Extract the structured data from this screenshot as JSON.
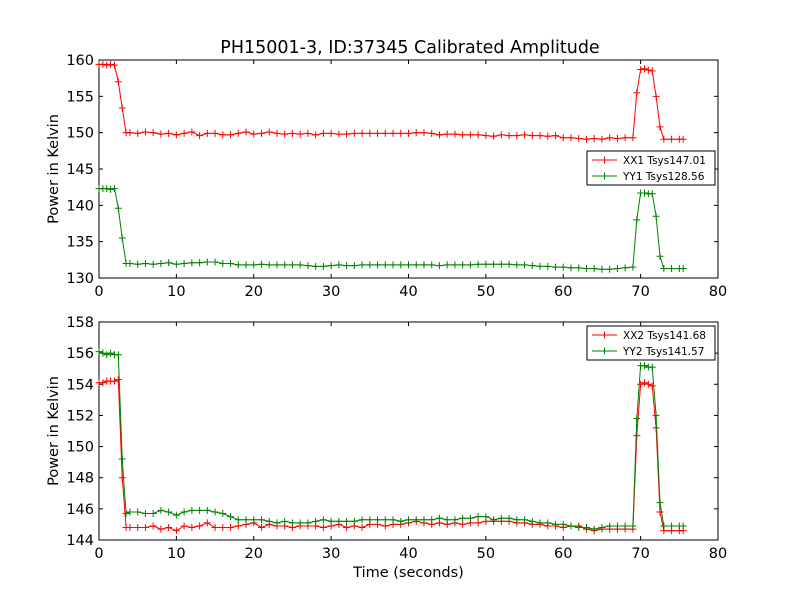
{
  "title": "PH15001-3, ID:37345 Calibrated Amplitude",
  "colors": {
    "xx": "#ff0000",
    "yy": "#008000",
    "frame": "#000000"
  },
  "chart_data": [
    {
      "type": "line",
      "title": "PH15001-3, ID:37345 Calibrated Amplitude",
      "xlabel": "",
      "ylabel": "Power in Kelvin",
      "xlim": [
        0,
        80
      ],
      "ylim": [
        130,
        160
      ],
      "xticks": [
        "0",
        "10",
        "20",
        "30",
        "40",
        "50",
        "60",
        "70",
        "80"
      ],
      "yticks": [
        "130",
        "135",
        "140",
        "145",
        "150",
        "155",
        "160"
      ],
      "legend_position": "center-right",
      "grid": false,
      "marker": "+",
      "series": [
        {
          "name": "XX1 Tsys147.01",
          "color": "#ff0000",
          "x": [
            0,
            0.5,
            1,
            1.5,
            2,
            2.5,
            3,
            3.5,
            4,
            5,
            6,
            7,
            8,
            9,
            10,
            11,
            12,
            13,
            14,
            15,
            16,
            17,
            18,
            19,
            20,
            21,
            22,
            23,
            24,
            25,
            26,
            27,
            28,
            29,
            30,
            31,
            32,
            33,
            34,
            35,
            36,
            37,
            38,
            39,
            40,
            41,
            42,
            43,
            44,
            45,
            46,
            47,
            48,
            49,
            50,
            51,
            52,
            53,
            54,
            55,
            56,
            57,
            58,
            59,
            60,
            61,
            62,
            63,
            64,
            65,
            66,
            67,
            68,
            69,
            69.5,
            70,
            70.5,
            71,
            71.5,
            72,
            72.5,
            73,
            74,
            75,
            75.5
          ],
          "y": [
            159.4,
            159.4,
            159.3,
            159.4,
            159.3,
            157.0,
            153.4,
            150.0,
            150.0,
            149.9,
            150.1,
            150.0,
            149.8,
            149.9,
            149.7,
            149.9,
            150.1,
            149.6,
            149.9,
            149.9,
            149.7,
            149.7,
            149.9,
            150.1,
            149.8,
            149.9,
            150.1,
            149.9,
            149.8,
            149.9,
            149.8,
            149.9,
            149.7,
            149.9,
            149.9,
            149.8,
            149.8,
            149.9,
            149.9,
            149.9,
            149.9,
            149.9,
            149.9,
            149.9,
            149.9,
            150.0,
            150.0,
            149.9,
            149.7,
            149.8,
            149.8,
            149.7,
            149.7,
            149.7,
            149.6,
            149.5,
            149.7,
            149.6,
            149.6,
            149.7,
            149.6,
            149.6,
            149.5,
            149.6,
            149.3,
            149.3,
            149.2,
            149.1,
            149.2,
            149.1,
            149.3,
            149.2,
            149.3,
            149.3,
            155.5,
            158.7,
            158.8,
            158.6,
            158.5,
            155.0,
            150.8,
            149.1,
            149.1,
            149.1,
            149.1
          ]
        },
        {
          "name": "YY1 Tsys128.56",
          "color": "#008000",
          "x": [
            0,
            0.5,
            1,
            1.5,
            2,
            2.5,
            3,
            3.5,
            4,
            5,
            6,
            7,
            8,
            9,
            10,
            11,
            12,
            13,
            14,
            15,
            16,
            17,
            18,
            19,
            20,
            21,
            22,
            23,
            24,
            25,
            26,
            27,
            28,
            29,
            30,
            31,
            32,
            33,
            34,
            35,
            36,
            37,
            38,
            39,
            40,
            41,
            42,
            43,
            44,
            45,
            46,
            47,
            48,
            49,
            50,
            51,
            52,
            53,
            54,
            55,
            56,
            57,
            58,
            59,
            60,
            61,
            62,
            63,
            64,
            65,
            66,
            67,
            68,
            69,
            69.5,
            70,
            70.5,
            71,
            71.5,
            72,
            72.5,
            73,
            74,
            75,
            75.5
          ],
          "y": [
            142.3,
            142.3,
            142.3,
            142.2,
            142.3,
            139.6,
            135.5,
            132.0,
            132.0,
            131.9,
            132.0,
            131.9,
            132.0,
            132.1,
            131.9,
            132.0,
            132.1,
            132.1,
            132.2,
            132.2,
            132.0,
            132.0,
            131.8,
            131.8,
            131.8,
            131.9,
            131.8,
            131.8,
            131.8,
            131.8,
            131.8,
            131.7,
            131.6,
            131.6,
            131.7,
            131.8,
            131.7,
            131.7,
            131.8,
            131.8,
            131.8,
            131.8,
            131.8,
            131.8,
            131.8,
            131.8,
            131.8,
            131.8,
            131.7,
            131.8,
            131.8,
            131.8,
            131.8,
            131.9,
            131.9,
            131.9,
            131.9,
            131.9,
            131.8,
            131.8,
            131.7,
            131.6,
            131.6,
            131.5,
            131.5,
            131.4,
            131.4,
            131.3,
            131.3,
            131.2,
            131.2,
            131.3,
            131.4,
            131.5,
            138.0,
            141.7,
            141.7,
            141.6,
            141.6,
            138.5,
            133.0,
            131.3,
            131.3,
            131.3,
            131.3
          ]
        }
      ]
    },
    {
      "type": "line",
      "title": "",
      "xlabel": "Time (seconds)",
      "ylabel": "Power in Kelvin",
      "xlim": [
        0,
        80
      ],
      "ylim": [
        144,
        158
      ],
      "xticks": [
        "0",
        "10",
        "20",
        "30",
        "40",
        "50",
        "60",
        "70",
        "80"
      ],
      "yticks": [
        "144",
        "146",
        "148",
        "150",
        "152",
        "154",
        "156",
        "158"
      ],
      "legend_position": "top-right",
      "grid": false,
      "marker": "+",
      "series": [
        {
          "name": "XX2 Tsys141.68",
          "color": "#ff0000",
          "x": [
            0,
            0.5,
            1,
            1.5,
            2,
            2.5,
            3,
            3.5,
            4,
            5,
            6,
            7,
            8,
            9,
            10,
            11,
            12,
            13,
            14,
            15,
            16,
            17,
            18,
            19,
            20,
            21,
            22,
            23,
            24,
            25,
            26,
            27,
            28,
            29,
            30,
            31,
            32,
            33,
            34,
            35,
            36,
            37,
            38,
            39,
            40,
            41,
            42,
            43,
            44,
            45,
            46,
            47,
            48,
            49,
            50,
            51,
            52,
            53,
            54,
            55,
            56,
            57,
            58,
            59,
            60,
            61,
            62,
            63,
            64,
            65,
            66,
            67,
            68,
            69,
            69.5,
            70,
            70.5,
            71,
            71.5,
            72,
            72.5,
            73,
            74,
            75,
            75.5
          ],
          "y": [
            154.1,
            154.1,
            154.2,
            154.2,
            154.2,
            154.3,
            148.0,
            144.8,
            144.8,
            144.8,
            144.8,
            144.9,
            144.7,
            144.8,
            144.6,
            144.9,
            144.8,
            144.9,
            145.1,
            144.8,
            144.8,
            144.8,
            144.9,
            145.0,
            145.1,
            144.8,
            145.0,
            144.9,
            144.9,
            144.8,
            144.9,
            144.9,
            144.9,
            144.8,
            144.9,
            145.0,
            144.8,
            144.9,
            144.8,
            145.0,
            145.0,
            144.9,
            145.0,
            145.0,
            145.1,
            145.2,
            145.1,
            145.0,
            145.1,
            145.0,
            145.1,
            145.0,
            145.1,
            145.1,
            145.2,
            145.2,
            145.2,
            145.2,
            145.1,
            145.1,
            145.0,
            145.0,
            144.9,
            144.9,
            144.8,
            144.9,
            144.9,
            144.7,
            144.6,
            144.7,
            144.7,
            144.7,
            144.7,
            144.7,
            150.7,
            154.0,
            154.1,
            154.0,
            153.9,
            151.2,
            145.8,
            144.6,
            144.6,
            144.6,
            144.6
          ]
        },
        {
          "name": "YY2 Tsys141.57",
          "color": "#008000",
          "x": [
            0,
            0.5,
            1,
            1.5,
            2,
            2.5,
            3,
            3.5,
            4,
            5,
            6,
            7,
            8,
            9,
            10,
            11,
            12,
            13,
            14,
            15,
            16,
            17,
            18,
            19,
            20,
            21,
            22,
            23,
            24,
            25,
            26,
            27,
            28,
            29,
            30,
            31,
            32,
            33,
            34,
            35,
            36,
            37,
            38,
            39,
            40,
            41,
            42,
            43,
            44,
            45,
            46,
            47,
            48,
            49,
            50,
            51,
            52,
            53,
            54,
            55,
            56,
            57,
            58,
            59,
            60,
            61,
            62,
            63,
            64,
            65,
            66,
            67,
            68,
            69,
            69.5,
            70,
            70.5,
            71,
            71.5,
            72,
            72.5,
            73,
            74,
            75,
            75.5
          ],
          "y": [
            156.1,
            156.0,
            155.9,
            156.0,
            155.9,
            155.9,
            149.2,
            145.7,
            145.8,
            145.8,
            145.7,
            145.7,
            145.9,
            145.8,
            145.6,
            145.8,
            145.9,
            145.9,
            145.9,
            145.8,
            145.7,
            145.5,
            145.3,
            145.3,
            145.3,
            145.3,
            145.2,
            145.1,
            145.2,
            145.1,
            145.1,
            145.1,
            145.2,
            145.3,
            145.2,
            145.2,
            145.2,
            145.2,
            145.3,
            145.3,
            145.3,
            145.3,
            145.3,
            145.2,
            145.3,
            145.3,
            145.3,
            145.3,
            145.4,
            145.3,
            145.3,
            145.4,
            145.4,
            145.5,
            145.5,
            145.3,
            145.4,
            145.4,
            145.3,
            145.3,
            145.2,
            145.1,
            145.1,
            145.0,
            145.0,
            144.9,
            144.8,
            144.8,
            144.7,
            144.8,
            144.9,
            144.9,
            144.9,
            144.9,
            151.8,
            155.2,
            155.2,
            155.1,
            155.1,
            152.0,
            146.4,
            144.9,
            144.9,
            144.9,
            144.9
          ]
        }
      ]
    }
  ]
}
